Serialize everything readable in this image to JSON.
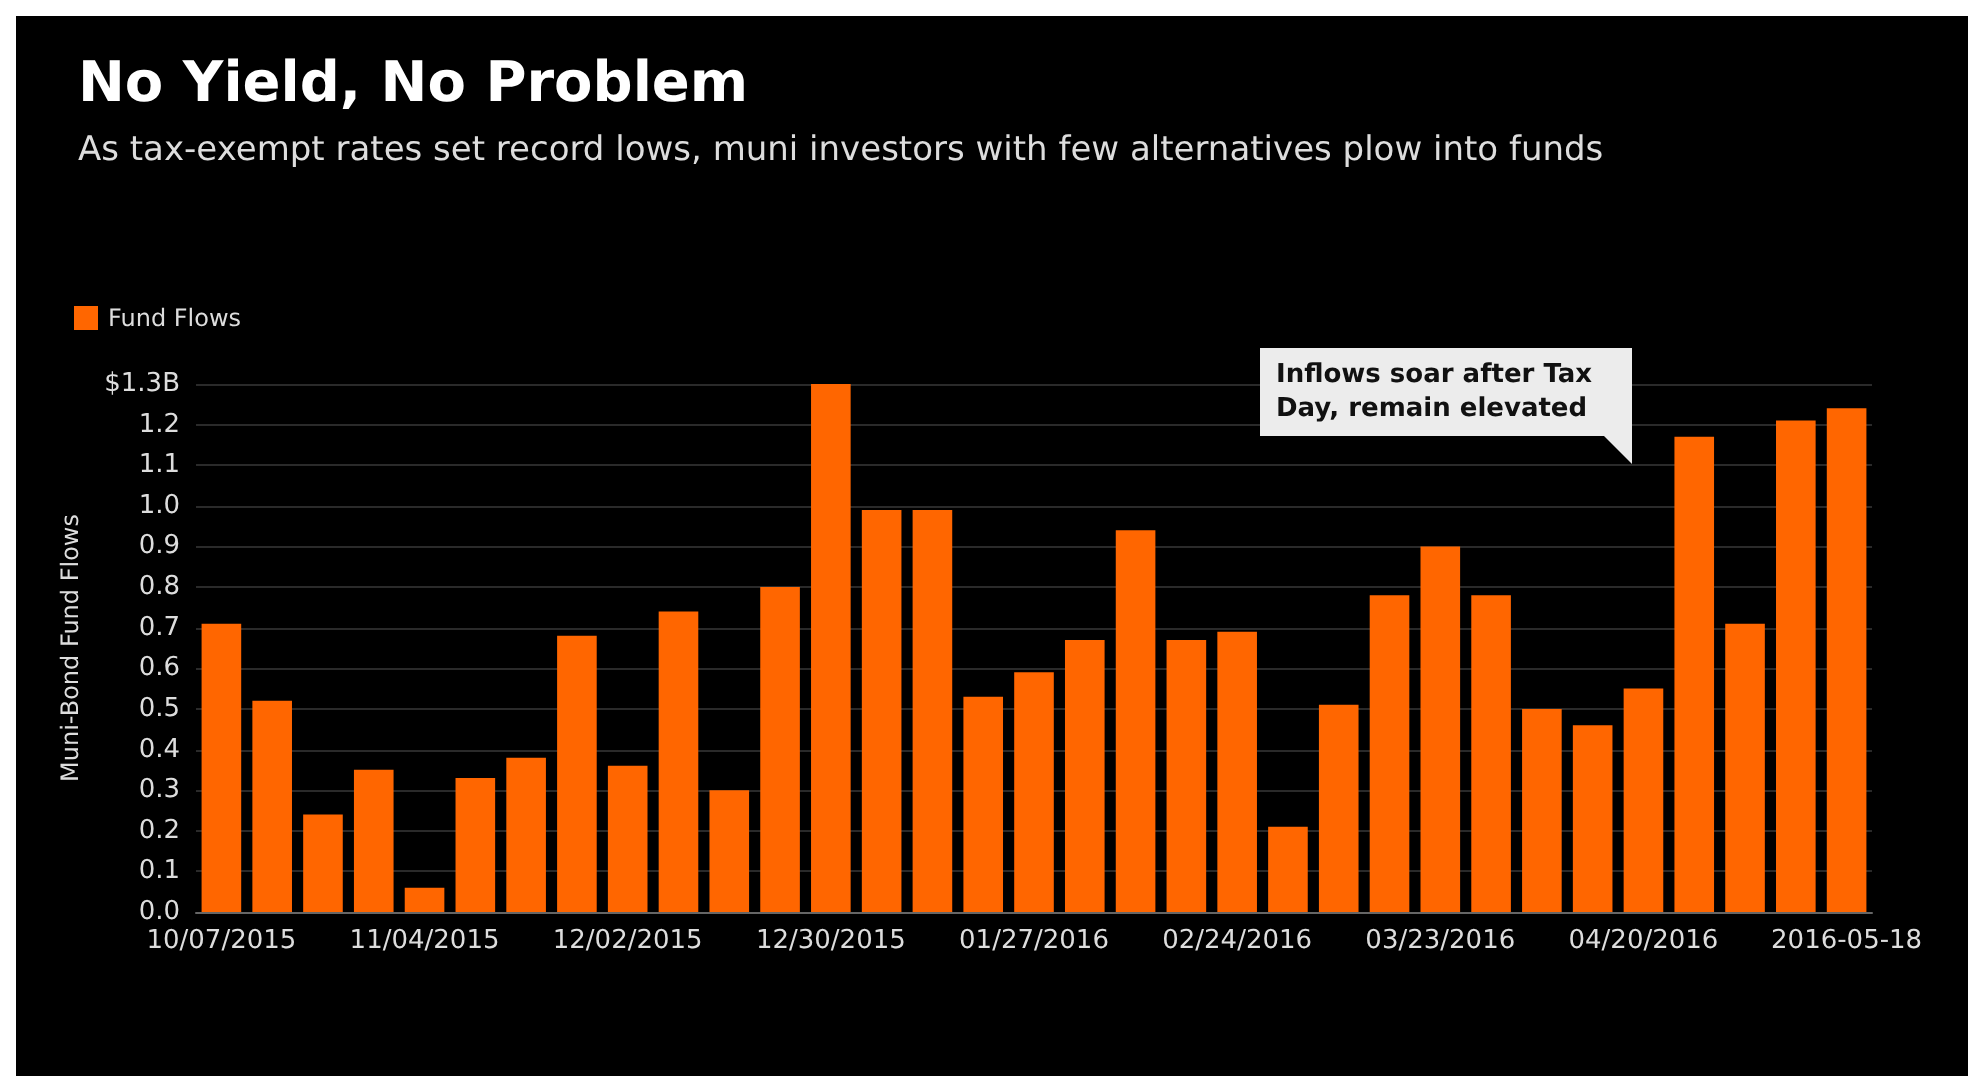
{
  "chart_data": {
    "type": "bar",
    "title": "No Yield, No Problem",
    "subtitle": "As tax-exempt rates set record lows, muni investors with few alternatives plow into funds",
    "ylabel": "Muni-Bond Fund Flows",
    "categories": [
      "10/07/2015",
      null,
      null,
      null,
      "11/04/2015",
      null,
      null,
      null,
      "12/02/2015",
      null,
      null,
      null,
      "12/30/2015",
      null,
      null,
      null,
      "01/27/2016",
      null,
      null,
      null,
      "02/24/2016",
      null,
      null,
      null,
      "03/23/2016",
      null,
      null,
      null,
      "04/20/2016",
      null,
      null,
      null,
      "2016-05-18"
    ],
    "series": [
      {
        "name": "Fund Flows",
        "color": "#ff6600",
        "values": [
          0.71,
          0.52,
          0.24,
          0.35,
          0.06,
          0.33,
          0.38,
          0.68,
          0.36,
          0.74,
          0.3,
          0.8,
          1.3,
          0.99,
          0.99,
          0.53,
          0.59,
          0.67,
          0.94,
          0.67,
          0.69,
          0.21,
          0.51,
          0.78,
          0.9,
          0.78,
          0.5,
          0.46,
          0.55,
          1.17,
          0.71,
          1.21,
          1.24
        ]
      }
    ],
    "ylim": [
      0,
      1.3
    ],
    "yticks": [
      {
        "value": 0,
        "label": "0.0"
      },
      {
        "value": 0.1,
        "label": "0.1"
      },
      {
        "value": 0.2,
        "label": "0.2"
      },
      {
        "value": 0.3,
        "label": "0.3"
      },
      {
        "value": 0.4,
        "label": "0.4"
      },
      {
        "value": 0.5,
        "label": "0.5"
      },
      {
        "value": 0.6,
        "label": "0.6"
      },
      {
        "value": 0.7,
        "label": "0.7"
      },
      {
        "value": 0.8,
        "label": "0.8"
      },
      {
        "value": 0.9,
        "label": "0.9"
      },
      {
        "value": 1,
        "label": "1.0"
      },
      {
        "value": 1.1,
        "label": "1.1"
      },
      {
        "value": 1.2,
        "label": "1.2"
      },
      {
        "value": 1.3,
        "label": "$1.3B"
      }
    ],
    "annotations": [
      "Inflows soar after Tax\nDay, remain elevated"
    ],
    "grid": "y",
    "legend": "top left"
  }
}
